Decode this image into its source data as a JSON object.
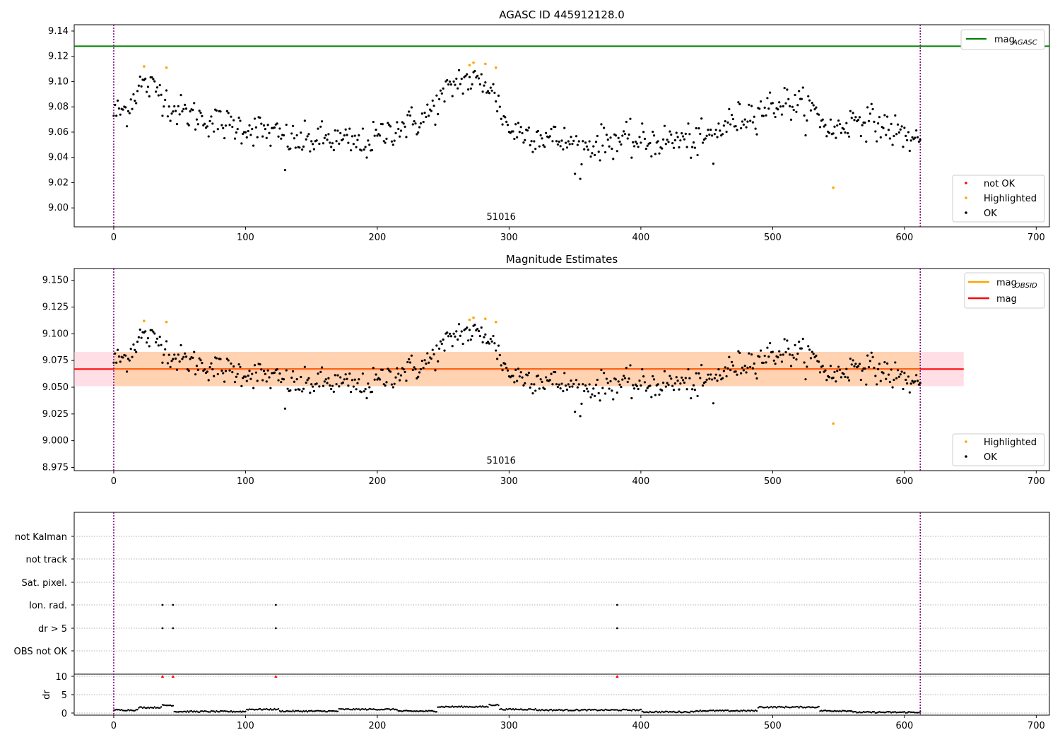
{
  "chart_data": [
    {
      "type": "scatter",
      "title": "AGASC ID 445912128.0",
      "xlim": [
        -30,
        710
      ],
      "ylim": [
        8.985,
        9.145
      ],
      "xticks": [
        0,
        100,
        200,
        300,
        400,
        500,
        600,
        700
      ],
      "yticks": [
        9.0,
        9.02,
        9.04,
        9.06,
        9.08,
        9.1,
        9.12,
        9.14
      ],
      "ytick_labels": [
        "9.00",
        "9.02",
        "9.04",
        "9.06",
        "9.08",
        "9.10",
        "9.12",
        "9.14"
      ],
      "obsid_annotation": "51016",
      "vlines": [
        0,
        612
      ],
      "mag_agasc": 9.128,
      "legend_top": [
        {
          "label": "mag",
          "sub": "AGASC",
          "color": "#008000"
        }
      ],
      "legend_bottom": [
        {
          "label": "not OK",
          "color": "#ff0000"
        },
        {
          "label": "Highlighted",
          "color": "#ffa500"
        },
        {
          "label": "OK",
          "color": "#000000"
        }
      ],
      "grid": false
    },
    {
      "type": "scatter",
      "title": "Magnitude Estimates",
      "xlim": [
        -30,
        710
      ],
      "ylim": [
        8.972,
        9.161
      ],
      "xticks": [
        0,
        100,
        200,
        300,
        400,
        500,
        600,
        700
      ],
      "yticks": [
        8.975,
        9.0,
        9.025,
        9.05,
        9.075,
        9.1,
        9.125,
        9.15
      ],
      "ytick_labels": [
        "8.975",
        "9.000",
        "9.025",
        "9.050",
        "9.075",
        "9.100",
        "9.125",
        "9.150"
      ],
      "obsid_annotation": "51016",
      "vlines": [
        0,
        612
      ],
      "mag_mean": 9.067,
      "band_outer": [
        9.051,
        9.083
      ],
      "band_inner": [
        9.051,
        9.083
      ],
      "legend_top": [
        {
          "label": "mag",
          "sub": "OBSID",
          "color": "#ffa500"
        },
        {
          "label": "mag",
          "sub": "",
          "color": "#ff0000"
        }
      ],
      "legend_bottom": [
        {
          "label": "Highlighted",
          "color": "#ffa500"
        },
        {
          "label": "OK",
          "color": "#000000"
        }
      ],
      "grid": false
    },
    {
      "type": "scatter",
      "title": "",
      "xlim": [
        -30,
        710
      ],
      "xticks": [
        0,
        100,
        200,
        300,
        400,
        500,
        600,
        700
      ],
      "flag_labels": [
        "not Kalman",
        "not track",
        "Sat. pixel.",
        "Ion. rad.",
        "dr > 5",
        "OBS not OK"
      ],
      "flag_points": {
        "Ion. rad.": [
          37,
          45,
          123,
          382
        ],
        "dr > 5": [
          37,
          45,
          123,
          382
        ]
      },
      "dr_label": "dr",
      "dr_yticks": [
        0,
        5,
        10
      ],
      "dr_ylim": [
        -0.5,
        10.5
      ],
      "dr_clipped_x": [
        37,
        45,
        123,
        382
      ],
      "dr_segments": [
        {
          "x": [
            0,
            18
          ],
          "y": 0.8
        },
        {
          "x": [
            19,
            36
          ],
          "y": 1.5
        },
        {
          "x": [
            37,
            45
          ],
          "y": 2.1
        },
        {
          "x": [
            46,
            100
          ],
          "y": 0.4
        },
        {
          "x": [
            101,
            125
          ],
          "y": 1.0
        },
        {
          "x": [
            126,
            170
          ],
          "y": 0.5
        },
        {
          "x": [
            171,
            215
          ],
          "y": 1.0
        },
        {
          "x": [
            216,
            245
          ],
          "y": 0.5
        },
        {
          "x": [
            246,
            284
          ],
          "y": 1.7
        },
        {
          "x": [
            285,
            292
          ],
          "y": 2.2
        },
        {
          "x": [
            293,
            320
          ],
          "y": 1.0
        },
        {
          "x": [
            321,
            400
          ],
          "y": 0.8
        },
        {
          "x": [
            401,
            440
          ],
          "y": 0.3
        },
        {
          "x": [
            441,
            488
          ],
          "y": 0.6
        },
        {
          "x": [
            489,
            535
          ],
          "y": 1.6
        },
        {
          "x": [
            536,
            560
          ],
          "y": 0.6
        },
        {
          "x": [
            561,
            612
          ],
          "y": 0.2
        }
      ],
      "vlines": [
        0,
        612
      ],
      "grid": true
    }
  ]
}
